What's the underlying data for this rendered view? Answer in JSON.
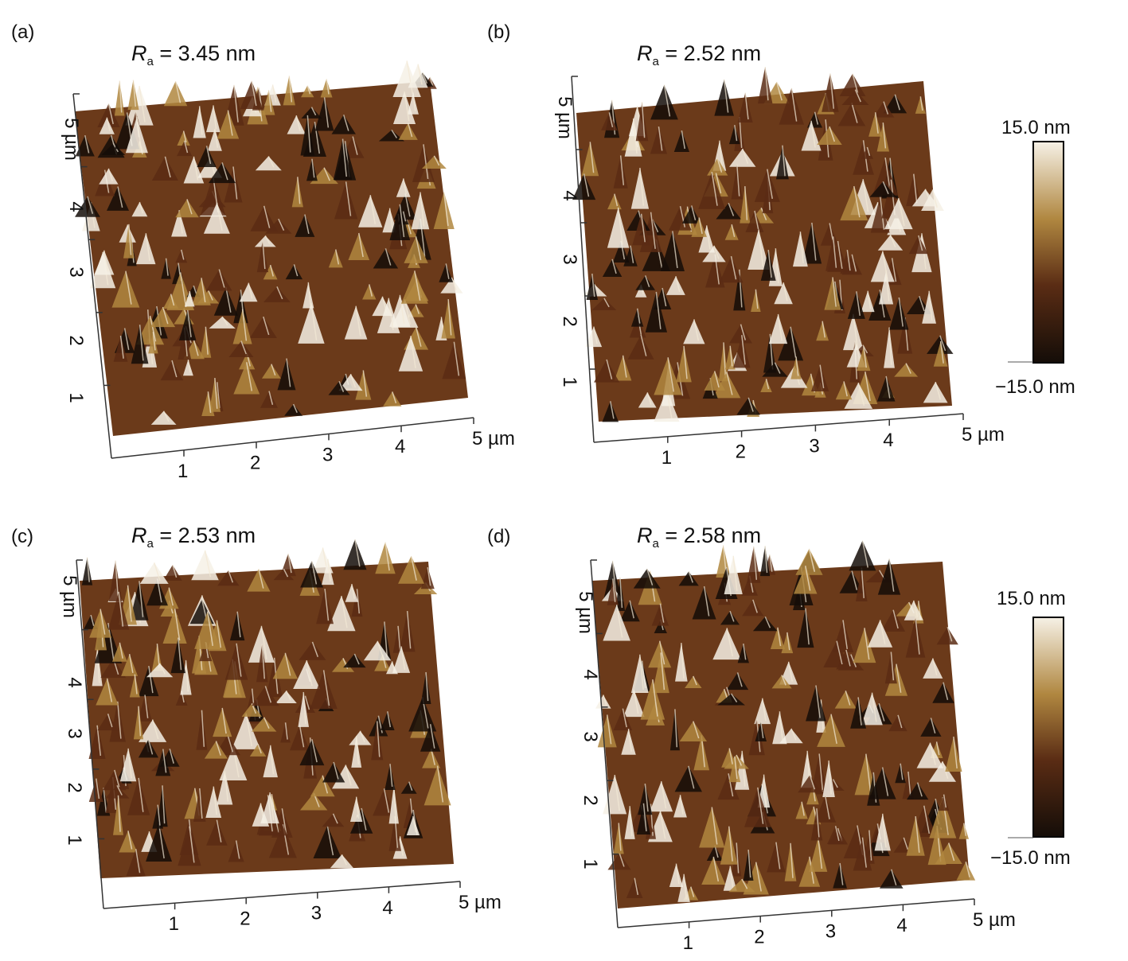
{
  "figure": {
    "colorbar": {
      "max_label": "15.0 nm",
      "min_label": "−15.0 nm"
    },
    "panels": [
      {
        "id": "a",
        "label": "(a)",
        "ra_value": " = 3.45 nm",
        "x_ticks": [
          "1",
          "2",
          "3",
          "4",
          "5 µm"
        ],
        "y_ticks": [
          "1",
          "2",
          "3",
          "4",
          "5 µm"
        ]
      },
      {
        "id": "b",
        "label": "(b)",
        "ra_value": " = 2.52 nm",
        "x_ticks": [
          "1",
          "2",
          "3",
          "4",
          "5 µm"
        ],
        "y_ticks": [
          "1",
          "2",
          "3",
          "4",
          "5 µm"
        ]
      },
      {
        "id": "c",
        "label": "(c)",
        "ra_value": " = 2.53 nm",
        "x_ticks": [
          "1",
          "2",
          "3",
          "4",
          "5 µm"
        ],
        "y_ticks": [
          "1",
          "2",
          "3",
          "4",
          "5 µm"
        ]
      },
      {
        "id": "d",
        "label": "(d)",
        "ra_value": " = 2.58 nm",
        "x_ticks": [
          "1",
          "2",
          "3",
          "4",
          "5 µm"
        ],
        "y_ticks": [
          "1",
          "2",
          "3",
          "4",
          "5 µm"
        ]
      }
    ],
    "ra_symbol": "R",
    "ra_subscript": "a",
    "colormap": [
      "#f6f1e6",
      "#b08740",
      "#5a2c14",
      "#140d08"
    ]
  }
}
